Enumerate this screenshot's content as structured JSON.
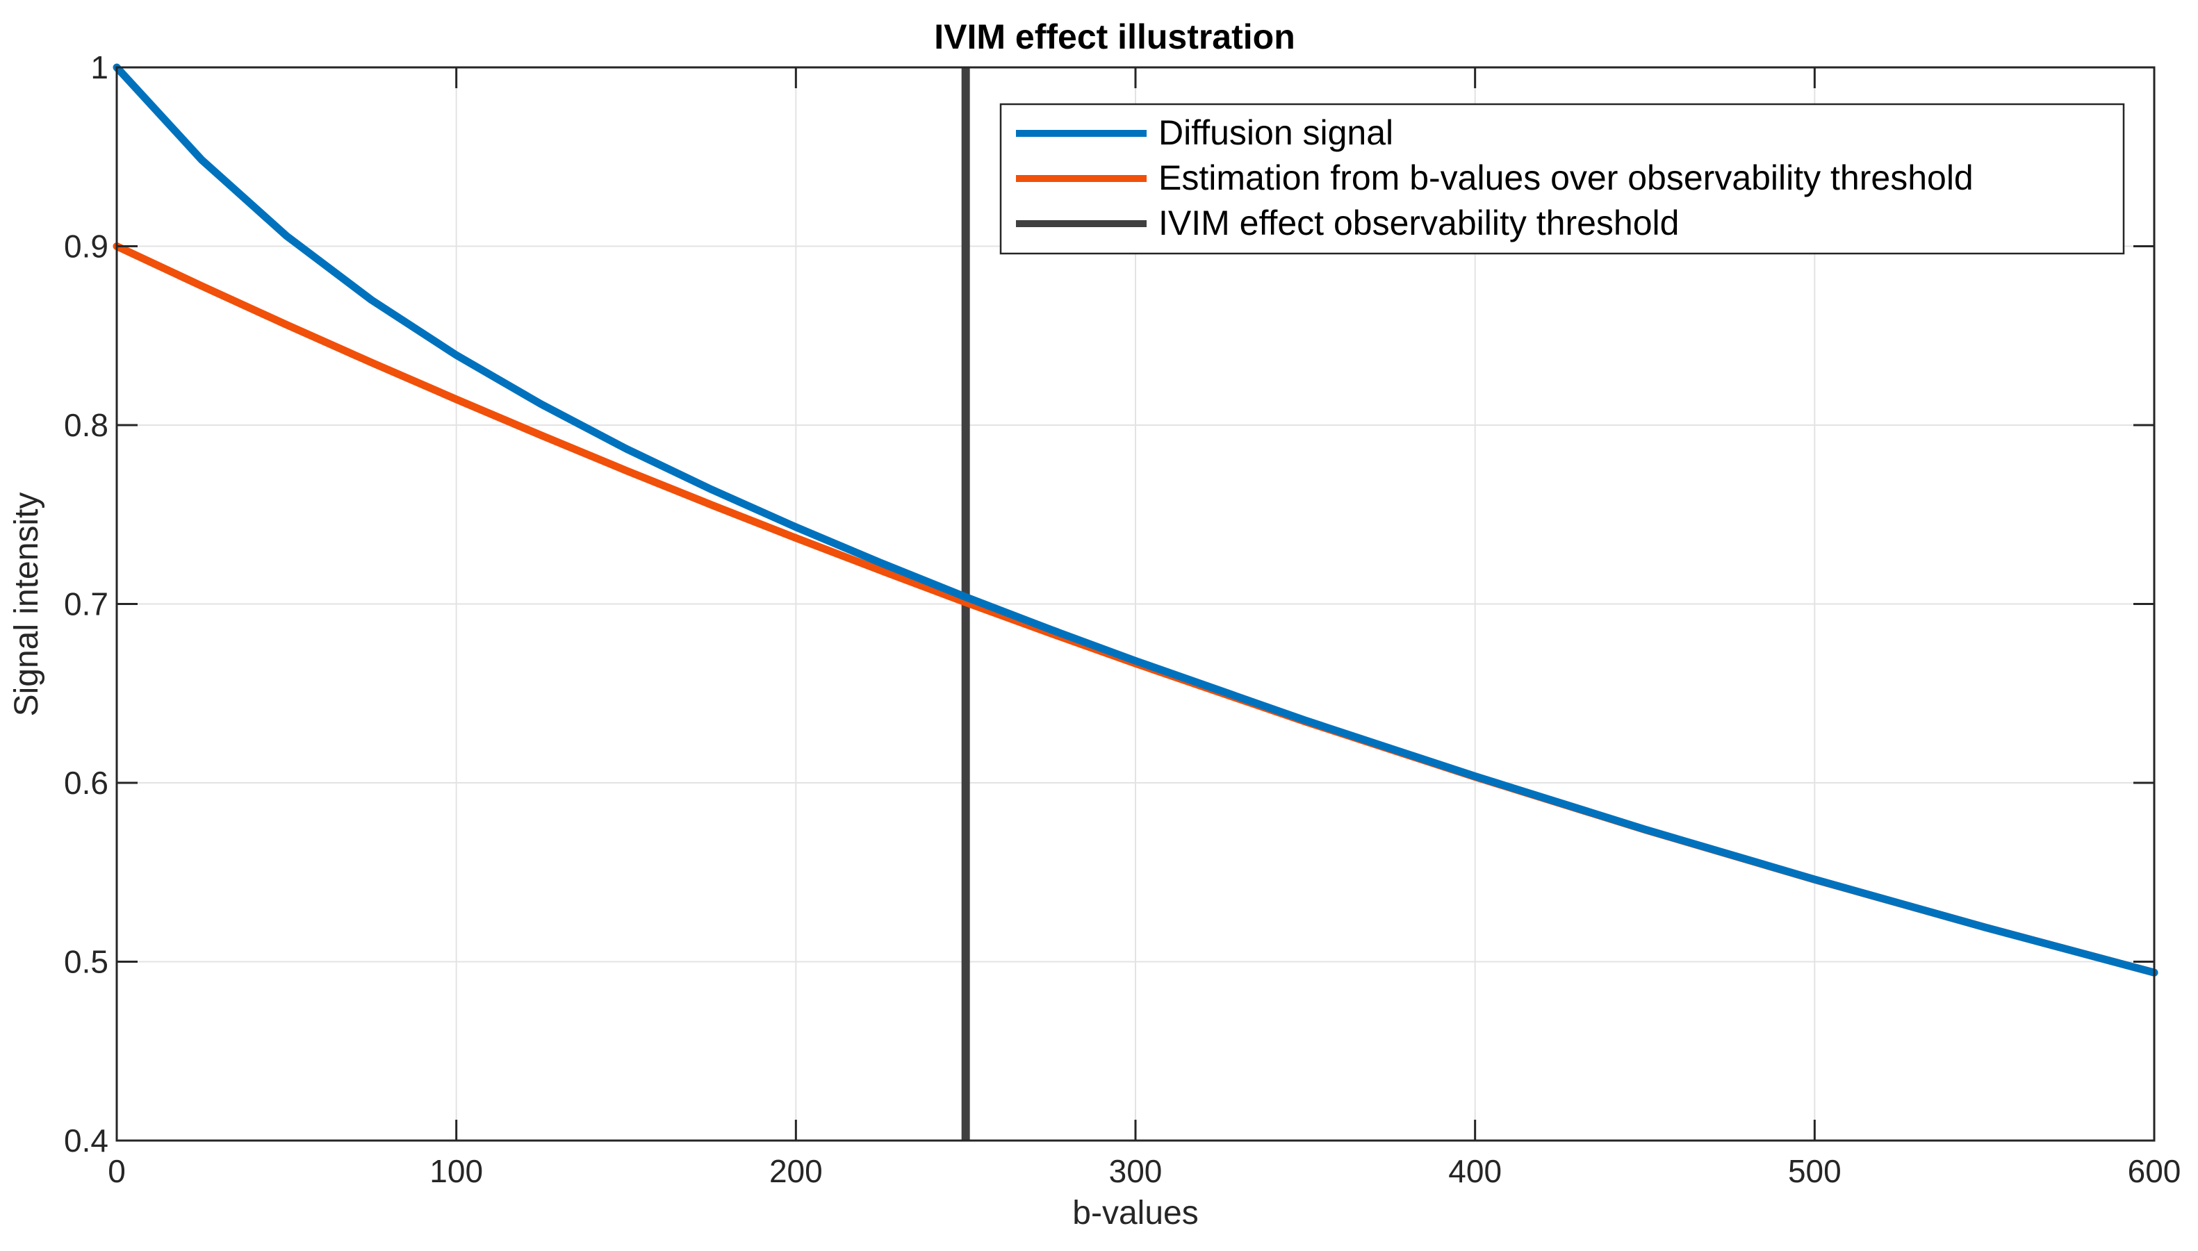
{
  "chart_data": {
    "type": "line",
    "title": "IVIM effect illustration",
    "xlabel": "b-values",
    "ylabel": "Signal intensity",
    "xlim": [
      0,
      600
    ],
    "ylim": [
      0.4,
      1
    ],
    "grid": true,
    "legend_position": "top-right",
    "xticks": [
      0,
      100,
      200,
      300,
      400,
      500,
      600
    ],
    "xtick_labels": [
      "0",
      "100",
      "200",
      "300",
      "400",
      "500",
      "600"
    ],
    "yticks": [
      0.4,
      0.5,
      0.6,
      0.7,
      0.8,
      0.9,
      1
    ],
    "ytick_labels": [
      "0.4",
      "0.5",
      "0.6",
      "0.7",
      "0.8",
      "0.9",
      "1"
    ],
    "x": [
      0,
      25,
      50,
      75,
      100,
      125,
      150,
      175,
      200,
      225,
      250,
      275,
      300,
      350,
      400,
      450,
      500,
      550,
      600
    ],
    "series": [
      {
        "name": "Diffusion signal",
        "color": "#0072BD",
        "values": [
          1.0,
          0.9483,
          0.9058,
          0.87,
          0.8391,
          0.8117,
          0.7868,
          0.7641,
          0.743,
          0.723,
          0.7039,
          0.6857,
          0.6682,
          0.6349,
          0.6037,
          0.574,
          0.546,
          0.5193,
          0.4939
        ]
      },
      {
        "name": "Estimation from b-values over observability threshold",
        "color": "#F0500A",
        "values": [
          0.9,
          0.8778,
          0.8561,
          0.835,
          0.8144,
          0.7943,
          0.7746,
          0.7555,
          0.7369,
          0.7187,
          0.7009,
          0.6836,
          0.6667,
          0.6342,
          0.6033,
          0.5738,
          0.5459,
          0.5193,
          0.4939
        ]
      },
      {
        "name": "IVIM effect observability threshold",
        "color": "#404040",
        "type": "vertical-line",
        "x_value": 250
      }
    ]
  }
}
